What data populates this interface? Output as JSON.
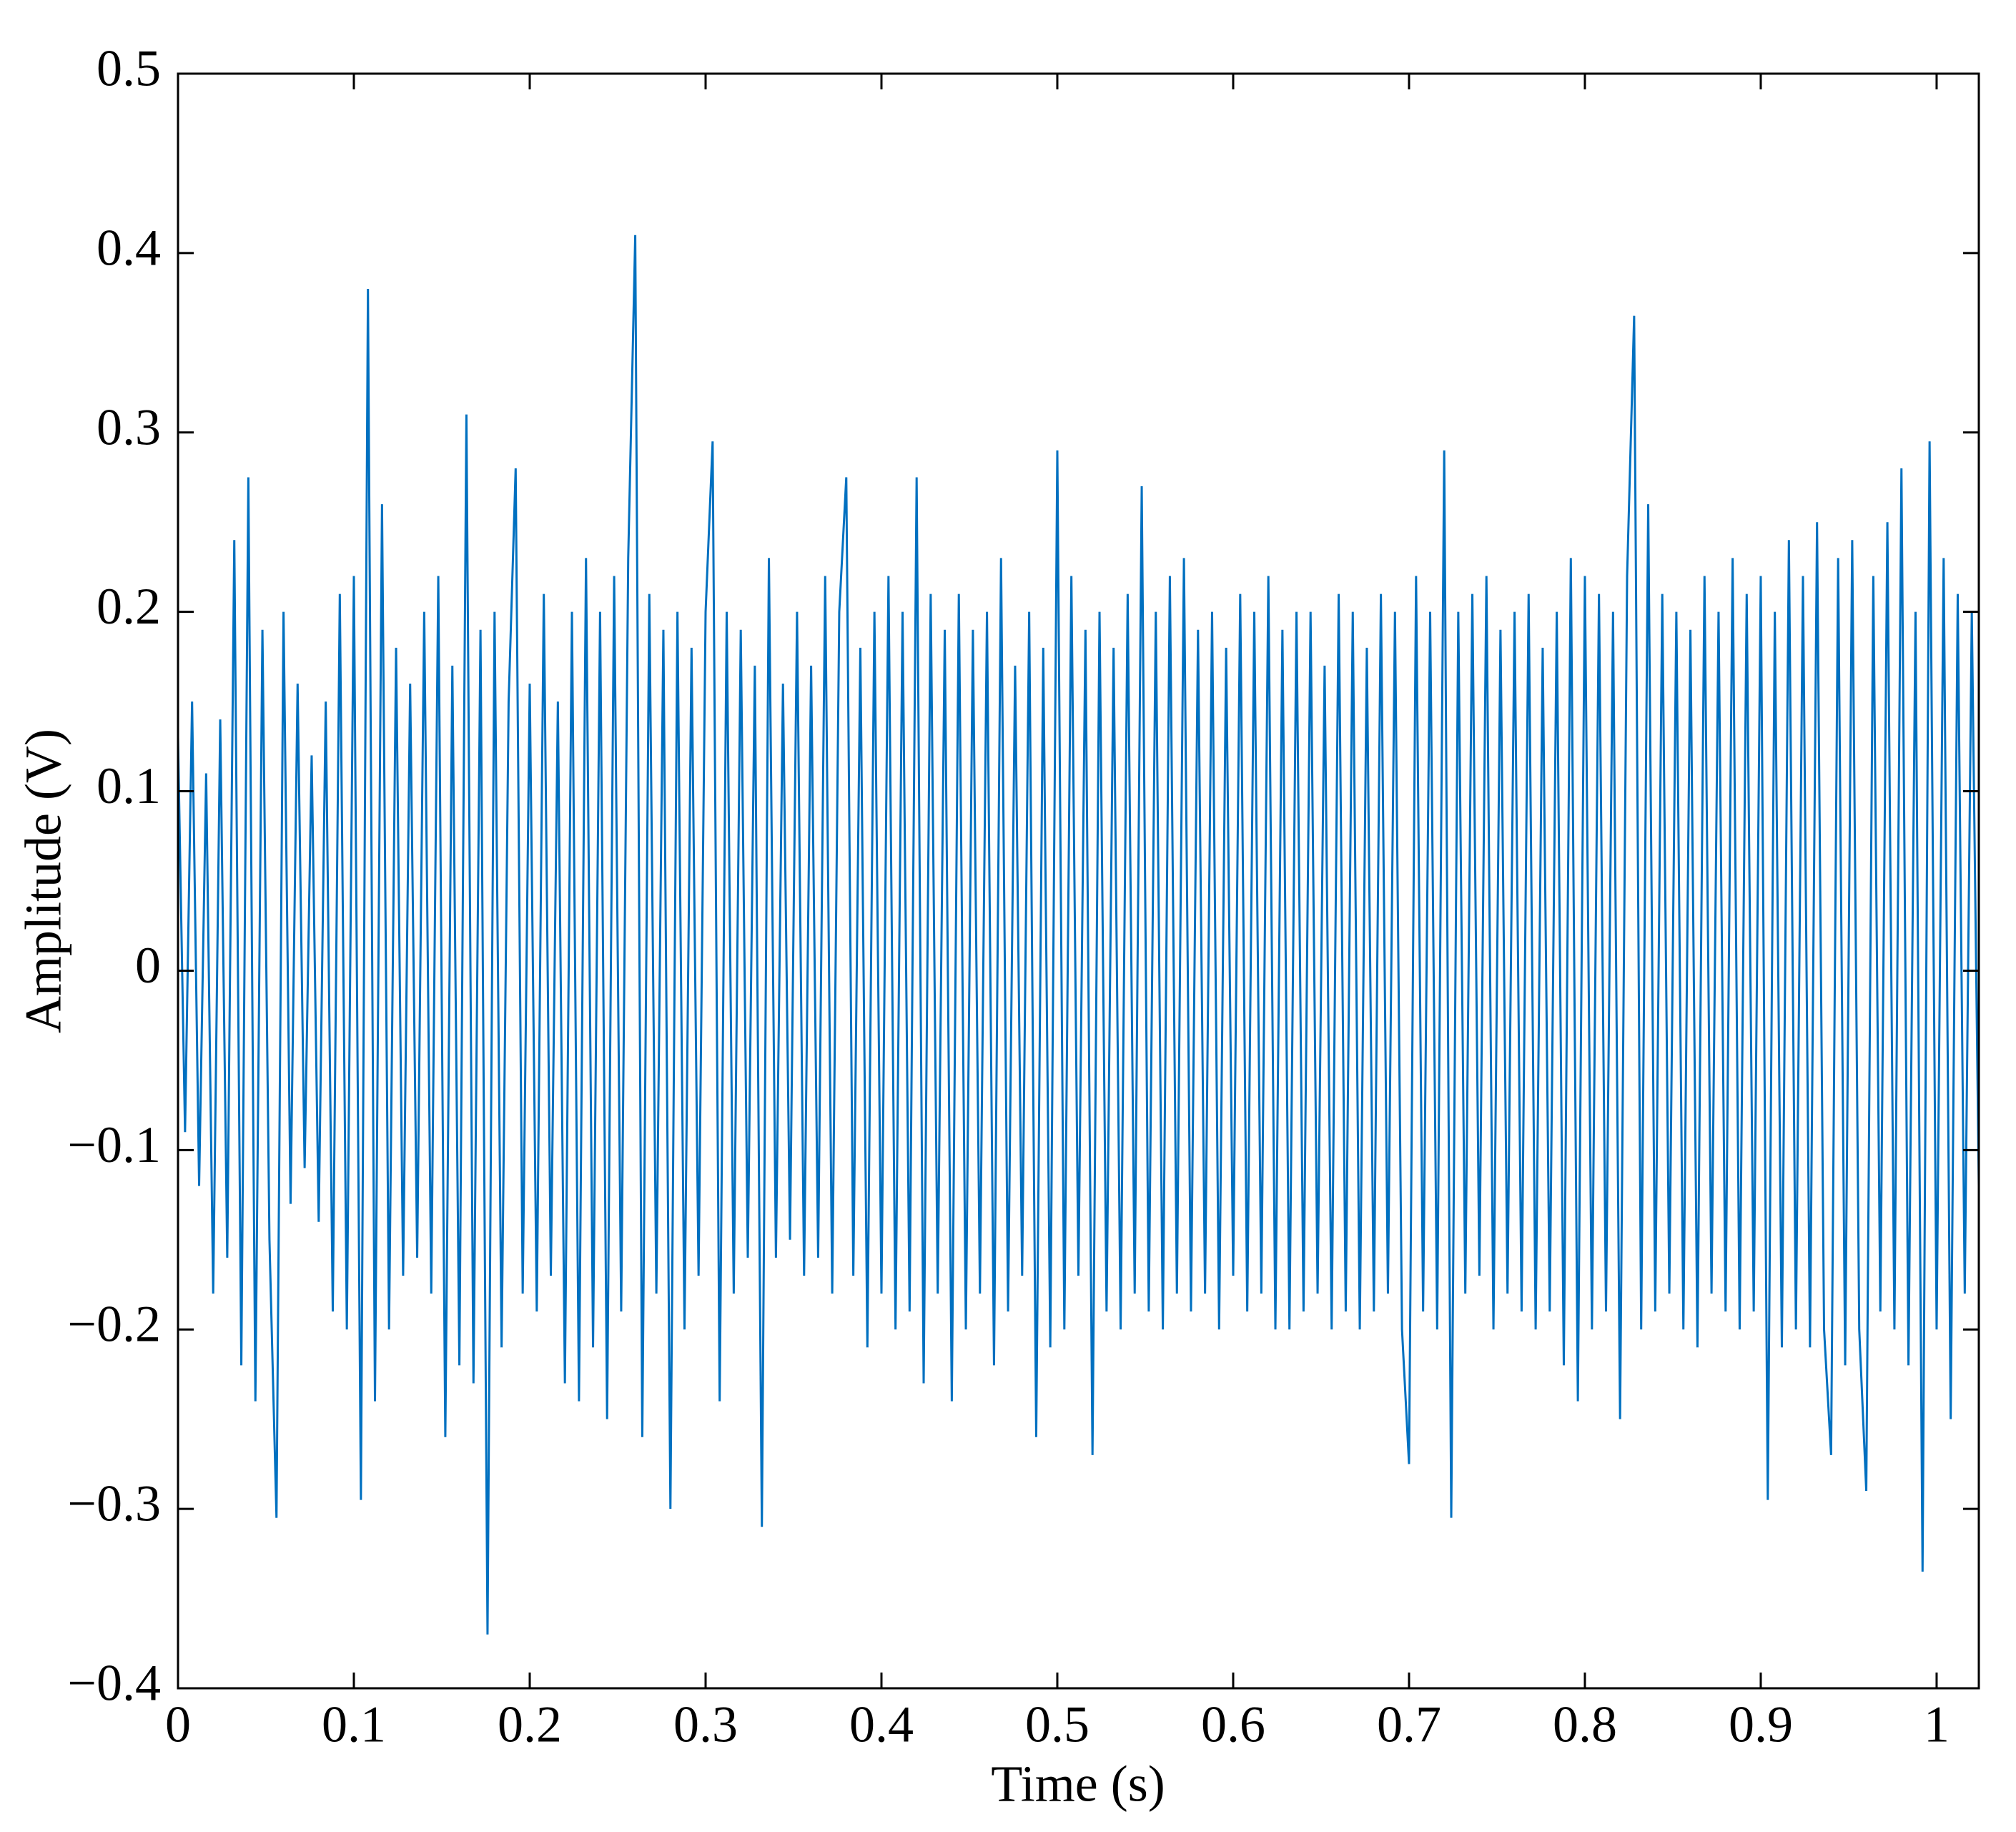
{
  "chart_data": {
    "type": "line",
    "xlabel": "Time (s)",
    "ylabel": "Amplitude (V)",
    "color": "#0070c0",
    "xlim": [
      0,
      1.024
    ],
    "ylim": [
      -0.4,
      0.5
    ],
    "xticks": [
      0,
      0.1,
      0.2,
      0.3,
      0.4,
      0.5,
      0.6,
      0.7,
      0.8,
      0.9,
      1
    ],
    "yticks": [
      {
        "value": -0.4,
        "label": "−0.4"
      },
      {
        "value": -0.3,
        "label": "−0.3"
      },
      {
        "value": -0.2,
        "label": "−0.2"
      },
      {
        "value": -0.1,
        "label": "−0.1"
      },
      0,
      0.1,
      0.2,
      0.3,
      0.4,
      0.5
    ],
    "x": [
      0,
      0.004,
      0.008,
      0.012,
      0.016,
      0.02,
      0.024,
      0.028,
      0.032,
      0.036,
      0.04,
      0.044,
      0.048,
      0.052,
      0.056,
      0.06,
      0.064,
      0.068,
      0.072,
      0.076,
      0.08,
      0.084,
      0.088,
      0.092,
      0.096,
      0.1,
      0.104,
      0.108,
      0.112,
      0.116,
      0.12,
      0.124,
      0.128,
      0.132,
      0.136,
      0.14,
      0.144,
      0.148,
      0.152,
      0.156,
      0.16,
      0.164,
      0.168,
      0.172,
      0.176,
      0.18,
      0.184,
      0.188,
      0.192,
      0.196,
      0.2,
      0.204,
      0.208,
      0.212,
      0.216,
      0.22,
      0.224,
      0.228,
      0.232,
      0.236,
      0.24,
      0.244,
      0.248,
      0.252,
      0.256,
      0.26,
      0.264,
      0.268,
      0.272,
      0.276,
      0.28,
      0.284,
      0.288,
      0.292,
      0.296,
      0.3,
      0.304,
      0.308,
      0.312,
      0.316,
      0.32,
      0.324,
      0.328,
      0.332,
      0.336,
      0.34,
      0.344,
      0.348,
      0.352,
      0.356,
      0.36,
      0.364,
      0.368,
      0.372,
      0.376,
      0.38,
      0.384,
      0.388,
      0.392,
      0.396,
      0.4,
      0.404,
      0.408,
      0.412,
      0.416,
      0.42,
      0.424,
      0.428,
      0.432,
      0.436,
      0.44,
      0.444,
      0.448,
      0.452,
      0.456,
      0.46,
      0.464,
      0.468,
      0.472,
      0.476,
      0.48,
      0.484,
      0.488,
      0.492,
      0.496,
      0.5,
      0.504,
      0.508,
      0.512,
      0.516,
      0.52,
      0.524,
      0.528,
      0.532,
      0.536,
      0.54,
      0.544,
      0.548,
      0.552,
      0.556,
      0.56,
      0.564,
      0.568,
      0.572,
      0.576,
      0.58,
      0.584,
      0.588,
      0.592,
      0.596,
      0.6,
      0.604,
      0.608,
      0.612,
      0.616,
      0.62,
      0.624,
      0.628,
      0.632,
      0.636,
      0.64,
      0.644,
      0.648,
      0.652,
      0.656,
      0.66,
      0.664,
      0.668,
      0.672,
      0.676,
      0.68,
      0.684,
      0.688,
      0.692,
      0.696,
      0.7,
      0.704,
      0.708,
      0.712,
      0.716,
      0.72,
      0.724,
      0.728,
      0.732,
      0.736,
      0.74,
      0.744,
      0.748,
      0.752,
      0.756,
      0.76,
      0.764,
      0.768,
      0.772,
      0.776,
      0.78,
      0.784,
      0.788,
      0.792,
      0.796,
      0.8,
      0.804,
      0.808,
      0.812,
      0.816,
      0.82,
      0.824,
      0.828,
      0.832,
      0.836,
      0.84,
      0.844,
      0.848,
      0.852,
      0.856,
      0.86,
      0.864,
      0.868,
      0.872,
      0.876,
      0.88,
      0.884,
      0.888,
      0.892,
      0.896,
      0.9,
      0.904,
      0.908,
      0.912,
      0.916,
      0.92,
      0.924,
      0.928,
      0.932,
      0.936,
      0.94,
      0.944,
      0.948,
      0.952,
      0.956,
      0.96,
      0.964,
      0.968,
      0.972,
      0.976,
      0.98,
      0.984,
      0.988,
      0.992,
      0.996,
      1,
      1.004,
      1.008,
      1.012,
      1.016,
      1.02,
      1.024
    ],
    "values": [
      0.13,
      -0.09,
      0.15,
      -0.12,
      0.11,
      -0.18,
      0.14,
      -0.16,
      0.24,
      -0.22,
      0.275,
      -0.24,
      0.19,
      -0.15,
      -0.305,
      0.2,
      -0.13,
      0.16,
      -0.11,
      0.12,
      -0.14,
      0.15,
      -0.19,
      0.21,
      -0.2,
      0.22,
      -0.295,
      0.38,
      -0.24,
      0.26,
      -0.2,
      0.18,
      -0.17,
      0.16,
      -0.16,
      0.2,
      -0.18,
      0.22,
      -0.26,
      0.17,
      -0.22,
      0.31,
      -0.23,
      0.19,
      -0.37,
      0.2,
      -0.21,
      0.15,
      0.28,
      -0.18,
      0.16,
      -0.19,
      0.21,
      -0.17,
      0.15,
      -0.23,
      0.2,
      -0.24,
      0.23,
      -0.21,
      0.2,
      -0.25,
      0.22,
      -0.19,
      0.23,
      0.41,
      -0.26,
      0.21,
      -0.18,
      0.19,
      -0.3,
      0.2,
      -0.2,
      0.18,
      -0.17,
      0.2,
      0.295,
      -0.24,
      0.2,
      -0.18,
      0.19,
      -0.16,
      0.17,
      -0.31,
      0.23,
      -0.16,
      0.16,
      -0.15,
      0.2,
      -0.17,
      0.17,
      -0.16,
      0.22,
      -0.18,
      0.2,
      0.275,
      -0.17,
      0.18,
      -0.21,
      0.2,
      -0.18,
      0.22,
      -0.2,
      0.2,
      -0.19,
      0.275,
      -0.23,
      0.21,
      -0.18,
      0.19,
      -0.24,
      0.21,
      -0.2,
      0.19,
      -0.18,
      0.2,
      -0.22,
      0.23,
      -0.19,
      0.17,
      -0.17,
      0.2,
      -0.26,
      0.18,
      -0.21,
      0.29,
      -0.2,
      0.22,
      -0.17,
      0.19,
      -0.27,
      0.2,
      -0.19,
      0.18,
      -0.2,
      0.21,
      -0.18,
      0.27,
      -0.19,
      0.2,
      -0.2,
      0.22,
      -0.18,
      0.23,
      -0.19,
      0.19,
      -0.18,
      0.2,
      -0.2,
      0.18,
      -0.17,
      0.21,
      -0.19,
      0.2,
      -0.18,
      0.22,
      -0.2,
      0.19,
      -0.2,
      0.2,
      -0.19,
      0.2,
      -0.18,
      0.17,
      -0.2,
      0.21,
      -0.19,
      0.2,
      -0.2,
      0.18,
      -0.19,
      0.21,
      -0.18,
      0.2,
      -0.2,
      -0.275,
      0.22,
      -0.19,
      0.2,
      -0.2,
      0.29,
      -0.305,
      0.2,
      -0.18,
      0.21,
      -0.17,
      0.22,
      -0.2,
      0.19,
      -0.18,
      0.2,
      -0.19,
      0.21,
      -0.2,
      0.18,
      -0.19,
      0.2,
      -0.22,
      0.23,
      -0.24,
      0.22,
      -0.2,
      0.21,
      -0.19,
      0.2,
      -0.25,
      0.22,
      0.365,
      -0.2,
      0.26,
      -0.19,
      0.21,
      -0.18,
      0.2,
      -0.2,
      0.19,
      -0.21,
      0.22,
      -0.18,
      0.2,
      -0.19,
      0.23,
      -0.2,
      0.21,
      -0.19,
      0.22,
      -0.295,
      0.2,
      -0.21,
      0.24,
      -0.2,
      0.22,
      -0.21,
      0.25,
      -0.2,
      -0.27,
      0.23,
      -0.22,
      0.24,
      -0.2,
      -0.29,
      0.22,
      -0.19,
      0.25,
      -0.2,
      0.28,
      -0.22,
      0.2,
      -0.335,
      0.295,
      -0.2,
      0.23,
      -0.25,
      0.21,
      -0.18,
      0.2,
      -0.12
    ]
  }
}
